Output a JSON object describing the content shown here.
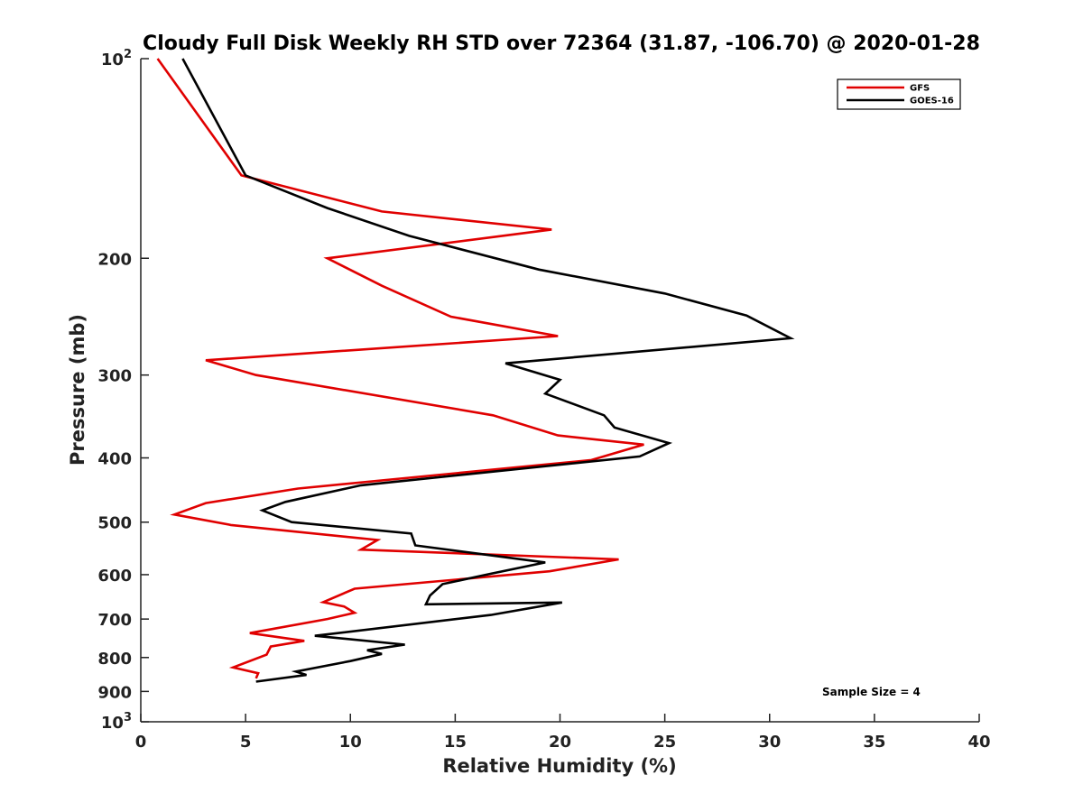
{
  "chart_data": {
    "type": "line",
    "title": "Cloudy Full Disk Weekly RH STD over 72364 (31.87, -106.70) @ 2020-01-28",
    "xlabel": "Relative Humidity (%)",
    "ylabel": "Pressure (mb)",
    "xlim": [
      0,
      40
    ],
    "ylim": [
      100,
      1000
    ],
    "y_scale": "log",
    "y_reversed": true,
    "grid": false,
    "legend_position": "top-right",
    "x_ticks": [
      {
        "value": 0,
        "label": "0"
      },
      {
        "value": 5,
        "label": "5"
      },
      {
        "value": 10,
        "label": "10"
      },
      {
        "value": 15,
        "label": "15"
      },
      {
        "value": 20,
        "label": "20"
      },
      {
        "value": 25,
        "label": "25"
      },
      {
        "value": 30,
        "label": "30"
      },
      {
        "value": 35,
        "label": "35"
      },
      {
        "value": 40,
        "label": "40"
      }
    ],
    "y_ticks": [
      {
        "value": 100,
        "base": "10",
        "exp": "2"
      },
      {
        "value": 200,
        "label": "200"
      },
      {
        "value": 300,
        "label": "300"
      },
      {
        "value": 400,
        "label": "400"
      },
      {
        "value": 500,
        "label": "500"
      },
      {
        "value": 600,
        "label": "600"
      },
      {
        "value": 700,
        "label": "700"
      },
      {
        "value": 800,
        "label": "800"
      },
      {
        "value": 900,
        "label": "900"
      },
      {
        "value": 1000,
        "base": "10",
        "exp": "3"
      }
    ],
    "annotation": "Sample Size = 4",
    "series": [
      {
        "name": "GFS",
        "color": "#e00000",
        "points": [
          [
            0.8,
            100
          ],
          [
            4.8,
            150
          ],
          [
            11.5,
            170
          ],
          [
            19.6,
            181
          ],
          [
            8.9,
            200
          ],
          [
            11.5,
            220
          ],
          [
            14.8,
            245
          ],
          [
            19.9,
            262
          ],
          [
            3.1,
            285
          ],
          [
            5.5,
            300
          ],
          [
            16.8,
            345
          ],
          [
            19.9,
            370
          ],
          [
            24.0,
            382
          ],
          [
            21.5,
            403
          ],
          [
            7.5,
            445
          ],
          [
            3.1,
            468
          ],
          [
            1.6,
            487
          ],
          [
            4.3,
            505
          ],
          [
            11.3,
            532
          ],
          [
            10.5,
            550
          ],
          [
            22.8,
            569
          ],
          [
            19.5,
            593
          ],
          [
            10.2,
            630
          ],
          [
            8.7,
            660
          ],
          [
            9.7,
            670
          ],
          [
            10.2,
            685
          ],
          [
            8.9,
            700
          ],
          [
            5.2,
            735
          ],
          [
            7.8,
            755
          ],
          [
            6.2,
            770
          ],
          [
            6.0,
            792
          ],
          [
            4.4,
            828
          ],
          [
            5.6,
            845
          ],
          [
            5.5,
            860
          ]
        ]
      },
      {
        "name": "GOES-16",
        "color": "#000000",
        "points": [
          [
            2.0,
            100
          ],
          [
            5.0,
            150
          ],
          [
            8.9,
            168
          ],
          [
            12.8,
            185
          ],
          [
            19.0,
            208
          ],
          [
            25.0,
            226
          ],
          [
            28.9,
            244
          ],
          [
            31.0,
            264
          ],
          [
            17.4,
            288
          ],
          [
            20.0,
            305
          ],
          [
            19.3,
            320
          ],
          [
            22.1,
            345
          ],
          [
            22.6,
            360
          ],
          [
            25.2,
            380
          ],
          [
            23.8,
            398
          ],
          [
            10.5,
            440
          ],
          [
            6.9,
            466
          ],
          [
            5.8,
            480
          ],
          [
            7.2,
            500
          ],
          [
            12.9,
            520
          ],
          [
            13.1,
            542
          ],
          [
            19.3,
            575
          ],
          [
            16.7,
            598
          ],
          [
            14.4,
            620
          ],
          [
            13.8,
            645
          ],
          [
            13.6,
            665
          ],
          [
            20.1,
            661
          ],
          [
            16.7,
            690
          ],
          [
            8.3,
            742
          ],
          [
            12.6,
            765
          ],
          [
            10.8,
            780
          ],
          [
            11.5,
            790
          ],
          [
            10.0,
            810
          ],
          [
            7.4,
            840
          ],
          [
            7.9,
            850
          ],
          [
            5.5,
            870
          ]
        ]
      }
    ]
  }
}
